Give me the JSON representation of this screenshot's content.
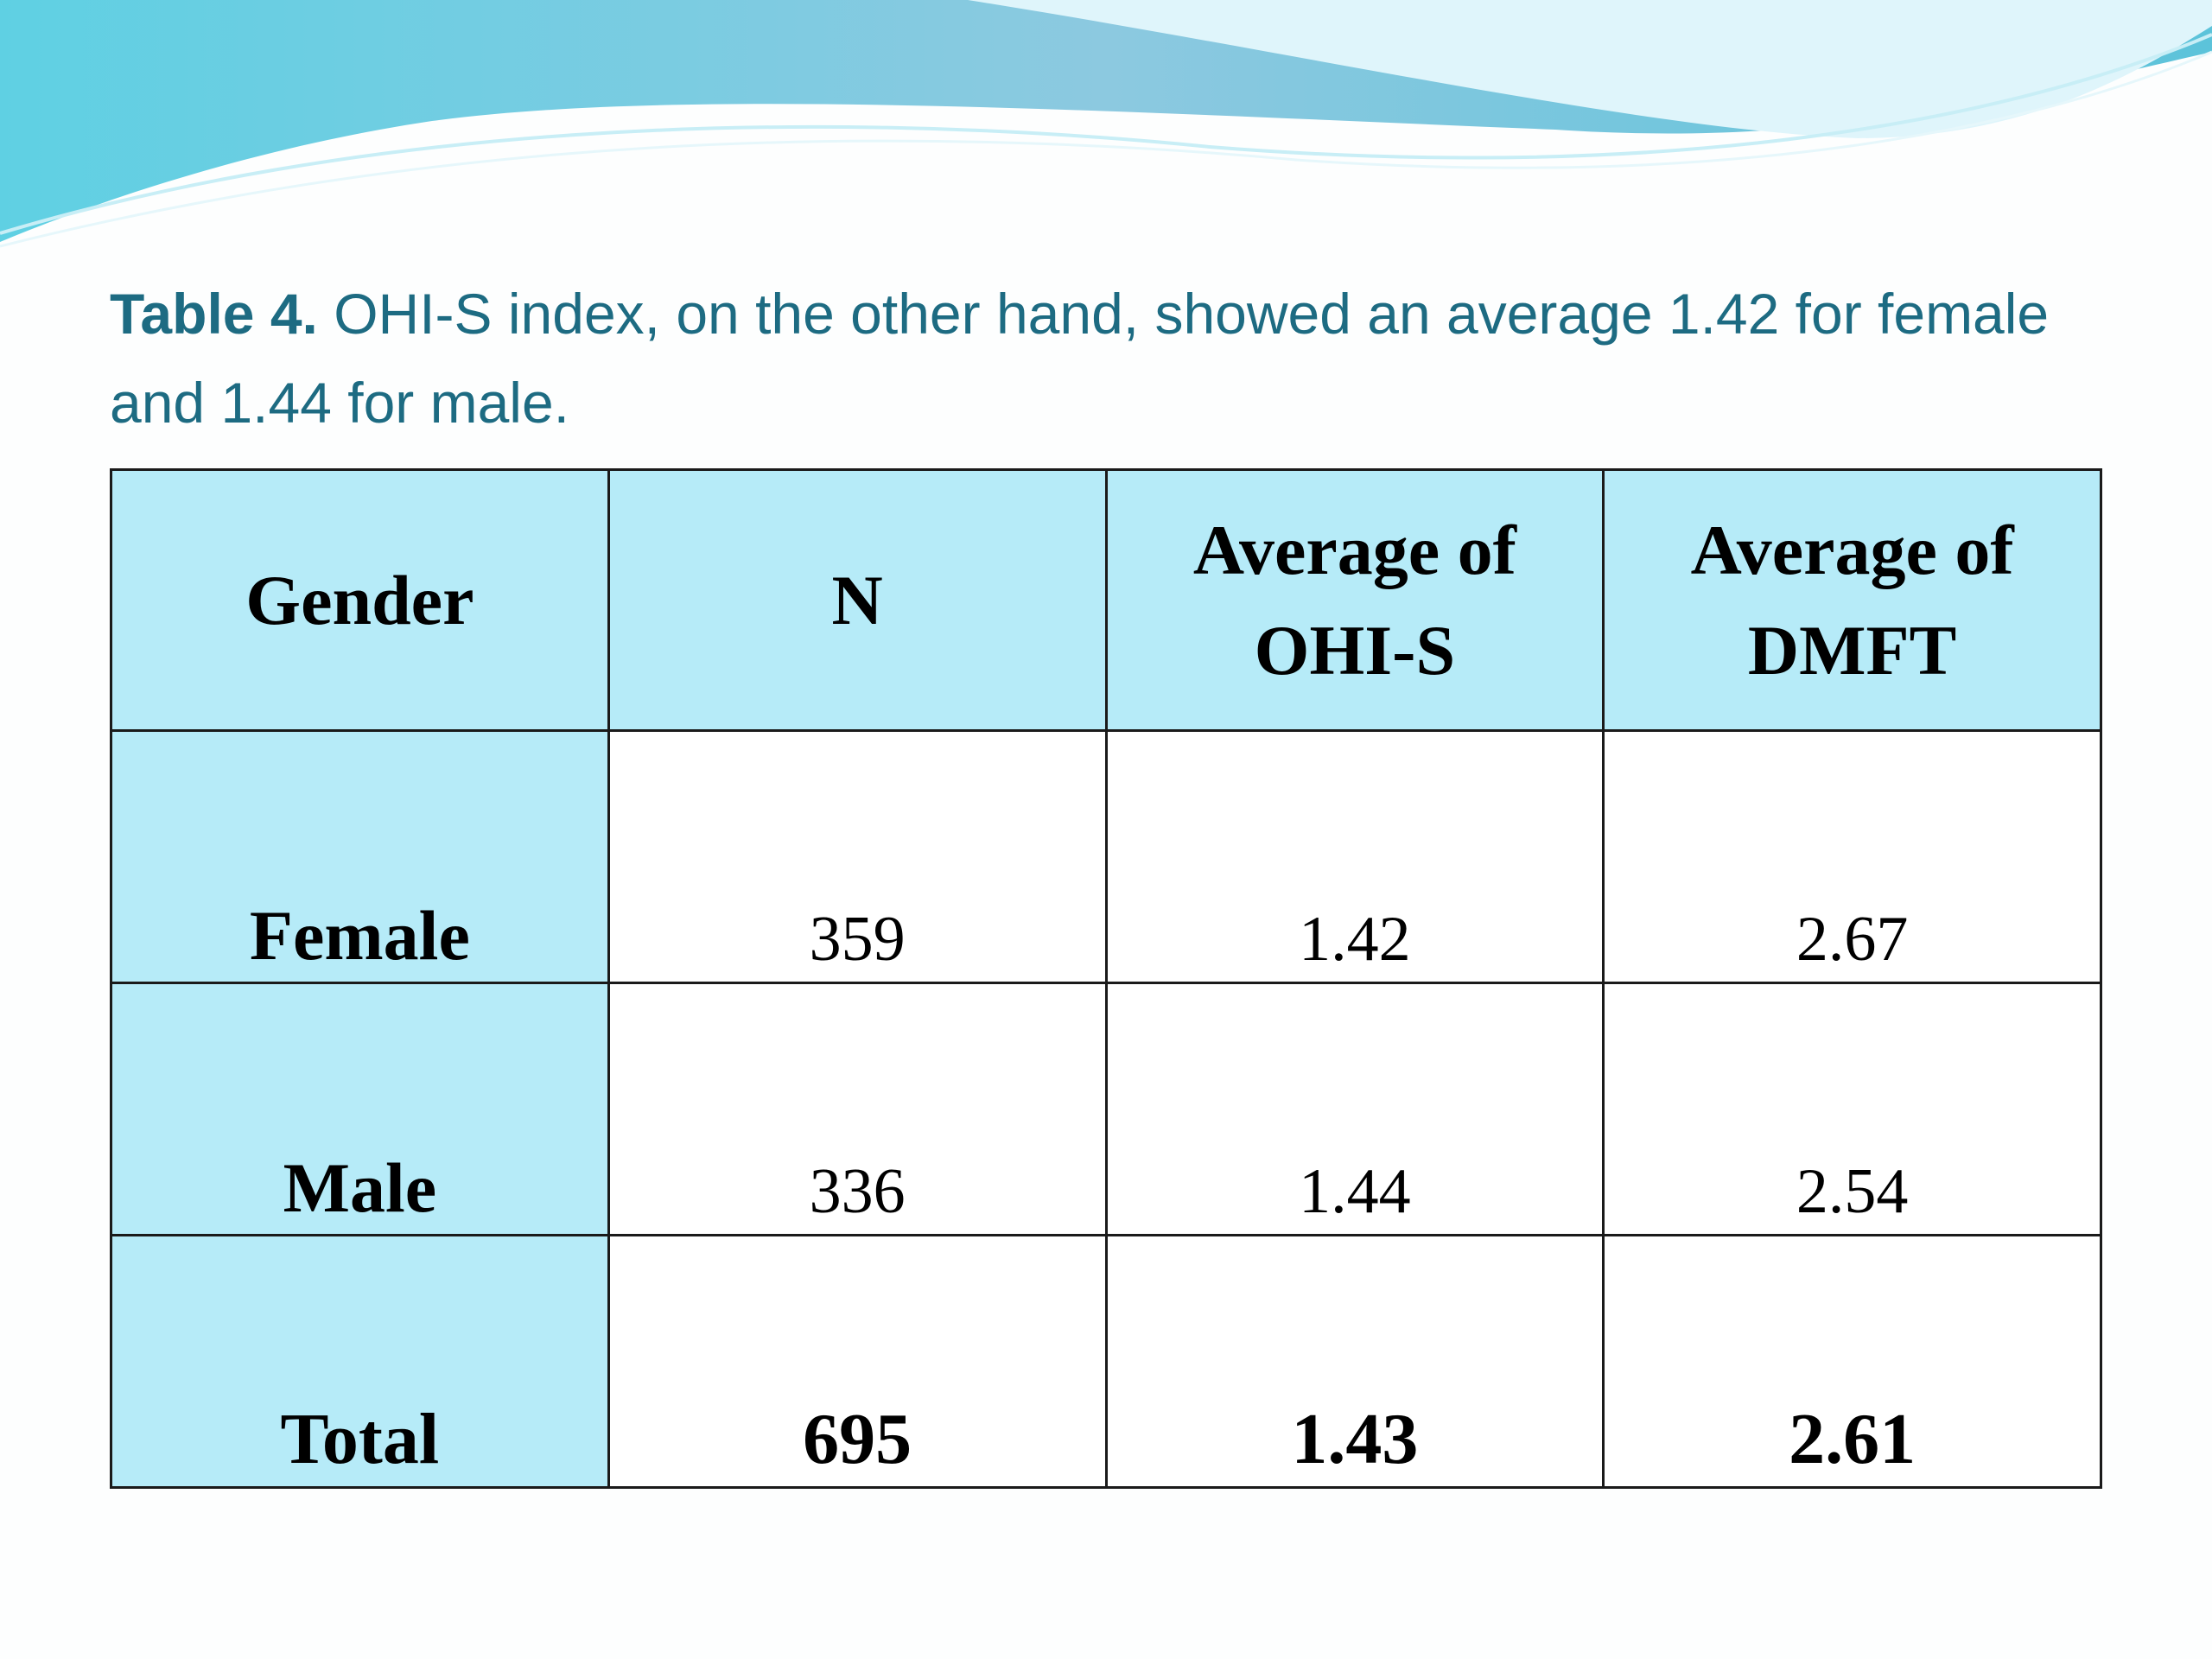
{
  "caption": {
    "label": "Table 4.",
    "text": "OHI-S index, on the other hand, showed an average 1.42 for female  and 1.44 for male."
  },
  "table": {
    "header": [
      "Gender",
      "N",
      "Average of OHI-S",
      "Average of DMFT"
    ],
    "rows": [
      [
        "Female",
        359,
        1.42,
        2.67
      ],
      [
        "Male",
        336,
        1.44,
        2.54
      ],
      [
        "Total",
        695,
        1.43,
        2.61
      ]
    ]
  }
}
